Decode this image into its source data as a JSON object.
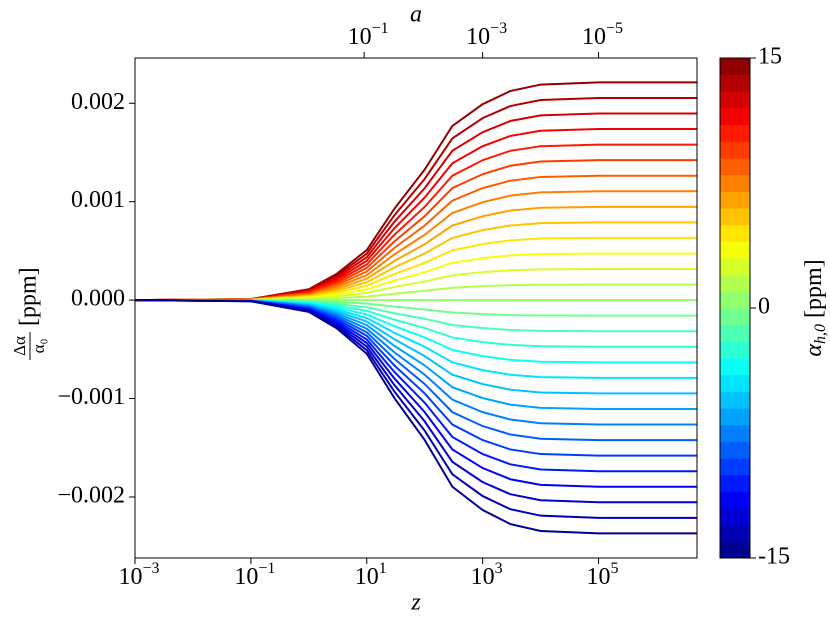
{
  "chart_data": {
    "type": "line",
    "xlabel": "z",
    "ylabel": {
      "numerator": "Δα",
      "denominator": "α₀",
      "unit": "[ppm]"
    },
    "x": [
      0.001,
      0.1,
      1,
      3,
      10,
      30,
      100,
      300,
      1000,
      3000,
      10000,
      100000,
      5000000
    ],
    "xlim": [
      0.001,
      5000000
    ],
    "xscale": "log",
    "xticks": [
      {
        "value": 0.001,
        "label": "10",
        "exponent": "−3"
      },
      {
        "value": 0.1,
        "label": "10",
        "exponent": "−1"
      },
      {
        "value": 10,
        "label": "10",
        "exponent": "1"
      },
      {
        "value": 1000,
        "label": "10",
        "exponent": "3"
      },
      {
        "value": 100000,
        "label": "10",
        "exponent": "5"
      }
    ],
    "top_axis": {
      "label": "a",
      "transform": "scale_factor",
      "ticks": [
        {
          "value": 0.1,
          "label": "10",
          "exponent": "−1"
        },
        {
          "value": 0.001,
          "label": "10",
          "exponent": "−3"
        },
        {
          "value": 1e-05,
          "label": "10",
          "exponent": "−5"
        }
      ]
    },
    "ylim": [
      -0.00262,
      0.00246
    ],
    "yticks": [
      {
        "value": -0.002,
        "label": "−0.002"
      },
      {
        "value": -0.001,
        "label": "−0.001"
      },
      {
        "value": 0,
        "label": "0.000"
      },
      0.001,
      0.002
    ],
    "colorbar": {
      "colormap": "jet",
      "bins": 30,
      "clim": [
        -15,
        15
      ],
      "ticks": [
        -15,
        0,
        15
      ],
      "label": {
        "symbol": "α",
        "subscript": "h,0",
        "unit": "[ppm]"
      }
    },
    "series": [
      {
        "color_value": 14,
        "values": [
          0,
          1.1e-05,
          0.000111,
          0.000265,
          0.000509,
          0.000929,
          0.001327,
          0.00177,
          0.001991,
          0.002124,
          0.00219,
          0.002212,
          0.002212
        ]
      },
      {
        "color_value": 13,
        "values": [
          0,
          1e-05,
          0.000103,
          0.000246,
          0.000472,
          0.000863,
          0.001232,
          0.001643,
          0.001849,
          0.001972,
          0.002033,
          0.002054,
          0.002054
        ]
      },
      {
        "color_value": 12,
        "values": [
          0,
          9e-06,
          9.5e-05,
          0.000228,
          0.000436,
          0.000796,
          0.001138,
          0.001517,
          0.001706,
          0.00182,
          0.001877,
          0.001896,
          0.001896
        ]
      },
      {
        "color_value": 11,
        "values": [
          0,
          9e-06,
          8.7e-05,
          0.000209,
          0.0004,
          0.00073,
          0.001043,
          0.00139,
          0.001564,
          0.001668,
          0.001721,
          0.001738,
          0.001738
        ]
      },
      {
        "color_value": 10,
        "values": [
          0,
          8e-06,
          7.9e-05,
          0.00019,
          0.000363,
          0.000664,
          0.000948,
          0.001264,
          0.001422,
          0.001517,
          0.001564,
          0.00158,
          0.00158
        ]
      },
      {
        "color_value": 9,
        "values": [
          0,
          7e-06,
          7.1e-05,
          0.000171,
          0.000327,
          0.000597,
          0.000853,
          0.001138,
          0.00128,
          0.001365,
          0.001408,
          0.001422,
          0.001422
        ]
      },
      {
        "color_value": 8,
        "values": [
          0,
          6e-06,
          6.3e-05,
          0.000152,
          0.000291,
          0.000531,
          0.000758,
          0.001011,
          0.001138,
          0.001213,
          0.001251,
          0.001264,
          0.001264
        ]
      },
      {
        "color_value": 7,
        "values": [
          0,
          6e-06,
          5.5e-05,
          0.000133,
          0.000254,
          0.000465,
          0.000664,
          0.000885,
          0.000995,
          0.001062,
          0.001095,
          0.001106,
          0.001106
        ]
      },
      {
        "color_value": 6,
        "values": [
          0,
          5e-06,
          4.7e-05,
          0.000114,
          0.000218,
          0.000398,
          0.000569,
          0.000758,
          0.000853,
          0.00091,
          0.000939,
          0.000948,
          0.000948
        ]
      },
      {
        "color_value": 5,
        "values": [
          0,
          4e-06,
          4e-05,
          9.5e-05,
          0.000182,
          0.000332,
          0.000474,
          0.000632,
          0.000711,
          0.000758,
          0.000782,
          0.00079,
          0.00079
        ]
      },
      {
        "color_value": 4,
        "values": [
          0,
          3e-06,
          3.2e-05,
          7.6e-05,
          0.000145,
          0.000265,
          0.000379,
          0.000506,
          0.000569,
          0.000607,
          0.000626,
          0.000632,
          0.000632
        ]
      },
      {
        "color_value": 3,
        "values": [
          0,
          2e-06,
          2.4e-05,
          5.7e-05,
          0.000109,
          0.000199,
          0.000284,
          0.000379,
          0.000427,
          0.000455,
          0.000469,
          0.000474,
          0.000474
        ]
      },
      {
        "color_value": 2,
        "values": [
          0,
          2e-06,
          1.6e-05,
          3.8e-05,
          7.3e-05,
          0.000133,
          0.00019,
          0.000253,
          0.000284,
          0.000303,
          0.000313,
          0.000316,
          0.000316
        ]
      },
      {
        "color_value": 1,
        "values": [
          0,
          1e-06,
          8e-06,
          1.9e-05,
          3.6e-05,
          6.6e-05,
          9.5e-05,
          0.000126,
          0.000142,
          0.000152,
          0.000156,
          0.000158,
          0.000158
        ]
      },
      {
        "color_value": 0,
        "values": [
          0,
          0,
          0,
          0,
          0,
          0,
          0,
          0,
          0,
          0,
          0,
          0,
          0
        ]
      },
      {
        "color_value": -1,
        "values": [
          0,
          -1e-06,
          -8e-06,
          -1.9e-05,
          -3.6e-05,
          -6.6e-05,
          -9.5e-05,
          -0.000126,
          -0.000142,
          -0.000152,
          -0.000156,
          -0.000158,
          -0.000158
        ]
      },
      {
        "color_value": -2,
        "values": [
          0,
          -2e-06,
          -1.6e-05,
          -3.8e-05,
          -7.3e-05,
          -0.000133,
          -0.00019,
          -0.000253,
          -0.000284,
          -0.000303,
          -0.000313,
          -0.000316,
          -0.000316
        ]
      },
      {
        "color_value": -3,
        "values": [
          0,
          -2e-06,
          -2.4e-05,
          -5.7e-05,
          -0.000109,
          -0.000199,
          -0.000284,
          -0.000379,
          -0.000427,
          -0.000455,
          -0.000469,
          -0.000474,
          -0.000474
        ]
      },
      {
        "color_value": -4,
        "values": [
          0,
          -3e-06,
          -3.2e-05,
          -7.6e-05,
          -0.000145,
          -0.000265,
          -0.000379,
          -0.000506,
          -0.000569,
          -0.000607,
          -0.000626,
          -0.000632,
          -0.000632
        ]
      },
      {
        "color_value": -5,
        "values": [
          0,
          -4e-06,
          -4e-05,
          -9.5e-05,
          -0.000182,
          -0.000332,
          -0.000474,
          -0.000632,
          -0.000711,
          -0.000758,
          -0.000782,
          -0.00079,
          -0.00079
        ]
      },
      {
        "color_value": -6,
        "values": [
          0,
          -5e-06,
          -4.7e-05,
          -0.000114,
          -0.000218,
          -0.000398,
          -0.000569,
          -0.000758,
          -0.000853,
          -0.00091,
          -0.000939,
          -0.000948,
          -0.000948
        ]
      },
      {
        "color_value": -7,
        "values": [
          0,
          -6e-06,
          -5.5e-05,
          -0.000133,
          -0.000254,
          -0.000465,
          -0.000664,
          -0.000885,
          -0.000995,
          -0.001062,
          -0.001095,
          -0.001106,
          -0.001106
        ]
      },
      {
        "color_value": -8,
        "values": [
          0,
          -6e-06,
          -6.3e-05,
          -0.000152,
          -0.000291,
          -0.000531,
          -0.000758,
          -0.001011,
          -0.001138,
          -0.001213,
          -0.001251,
          -0.001264,
          -0.001264
        ]
      },
      {
        "color_value": -9,
        "values": [
          0,
          -7e-06,
          -7.1e-05,
          -0.000171,
          -0.000327,
          -0.000597,
          -0.000853,
          -0.001138,
          -0.00128,
          -0.001365,
          -0.001408,
          -0.001422,
          -0.001422
        ]
      },
      {
        "color_value": -10,
        "values": [
          0,
          -8e-06,
          -7.9e-05,
          -0.00019,
          -0.000363,
          -0.000664,
          -0.000948,
          -0.001264,
          -0.001422,
          -0.001517,
          -0.001564,
          -0.00158,
          -0.00158
        ]
      },
      {
        "color_value": -11,
        "values": [
          0,
          -9e-06,
          -8.7e-05,
          -0.000209,
          -0.0004,
          -0.00073,
          -0.001043,
          -0.00139,
          -0.001564,
          -0.001668,
          -0.001721,
          -0.001738,
          -0.001738
        ]
      },
      {
        "color_value": -12,
        "values": [
          0,
          -9e-06,
          -9.5e-05,
          -0.000228,
          -0.000436,
          -0.000796,
          -0.001138,
          -0.001517,
          -0.001706,
          -0.00182,
          -0.001877,
          -0.001896,
          -0.001896
        ]
      },
      {
        "color_value": -13,
        "values": [
          0,
          -1e-05,
          -0.000103,
          -0.000246,
          -0.000472,
          -0.000863,
          -0.001232,
          -0.001643,
          -0.001849,
          -0.001972,
          -0.002033,
          -0.002054,
          -0.002054
        ]
      },
      {
        "color_value": -14,
        "values": [
          0,
          -1.1e-05,
          -0.000111,
          -0.000265,
          -0.000509,
          -0.000929,
          -0.001327,
          -0.00177,
          -0.001991,
          -0.002124,
          -0.00219,
          -0.002212,
          -0.002212
        ]
      },
      {
        "color_value": -15,
        "values": [
          0,
          -1.2e-05,
          -0.000119,
          -0.000284,
          -0.000545,
          -0.000995,
          -0.001422,
          -0.001896,
          -0.002133,
          -0.002275,
          -0.002346,
          -0.00237,
          -0.00237
        ]
      }
    ]
  }
}
